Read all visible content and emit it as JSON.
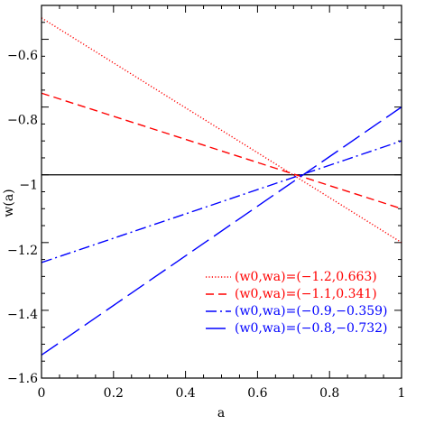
{
  "chart_data": {
    "type": "line",
    "xlabel": "a",
    "ylabel": "w(a)",
    "xlim": [
      0,
      1
    ],
    "ylim": [
      -1.6,
      -0.5
    ],
    "x_ticks": [
      0,
      0.2,
      0.4,
      0.6,
      0.8,
      1
    ],
    "x_tick_labels": [
      "0",
      "0.2",
      "0.4",
      "0.6",
      "0.8",
      "1"
    ],
    "y_ticks": [
      -1.6,
      -1.4,
      -1.2,
      -1.0,
      -0.8,
      -0.6
    ],
    "y_tick_labels": [
      "−1.6",
      "−1.4",
      "−1.2",
      "−1",
      "−0.8",
      "−0.6"
    ],
    "grid": false,
    "legend_position": "bottom-right",
    "reference_line": {
      "y": -1,
      "color": "#000000"
    },
    "series": [
      {
        "label": "(w0,wa)=(−1.2,0.663)",
        "w0": -1.2,
        "wa": 0.663,
        "x": [
          0,
          1
        ],
        "y": [
          -0.537,
          -1.2
        ],
        "color": "#ff0000",
        "style": "dotted"
      },
      {
        "label": "(w0,wa)=(−1.1,0.341)",
        "w0": -1.1,
        "wa": 0.341,
        "x": [
          0,
          1
        ],
        "y": [
          -0.759,
          -1.1
        ],
        "color": "#ff0000",
        "style": "dashed"
      },
      {
        "label": "(w0,wa)=(−0.9,−0.359)",
        "w0": -0.9,
        "wa": -0.359,
        "x": [
          0,
          1
        ],
        "y": [
          -1.259,
          -0.9
        ],
        "color": "#0000ff",
        "style": "dashdot"
      },
      {
        "label": "(w0,wa)=(−0.8,−0.732)",
        "w0": -0.8,
        "wa": -0.732,
        "x": [
          0,
          1
        ],
        "y": [
          -1.532,
          -0.8
        ],
        "color": "#0000ff",
        "style": "longdash"
      }
    ]
  }
}
